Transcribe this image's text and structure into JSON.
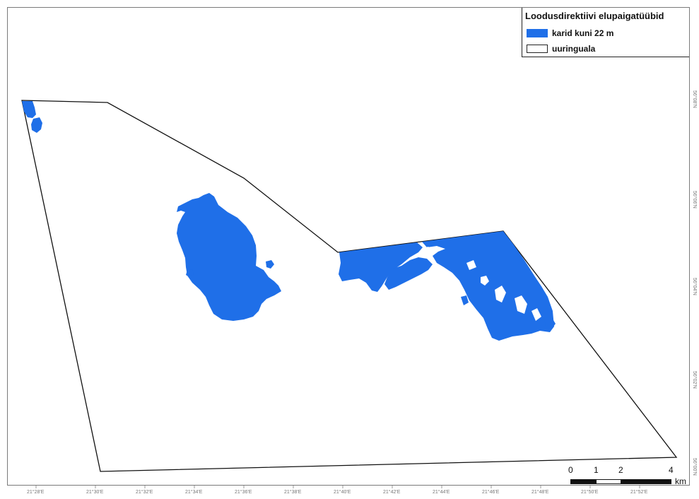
{
  "legend": {
    "title": "Loodusdirektiivi elupaigatüübid",
    "items": [
      {
        "label": "karid kuni 22 m",
        "color": "#1f6fe8"
      },
      {
        "label": "uuringuala",
        "color": "#ffffff"
      }
    ]
  },
  "scalebar": {
    "ticks": [
      "0",
      "1",
      "2",
      "4"
    ],
    "unit": "km"
  },
  "longitude_labels": [
    "21°28'E",
    "21°30'E",
    "21°32'E",
    "21°34'E",
    "21°36'E",
    "21°38'E",
    "21°40'E",
    "21°42'E",
    "21°44'E",
    "21°46'E",
    "21°48'E",
    "21°50'E",
    "21°52'E"
  ],
  "latitude_labels": [
    "56°08'N",
    "56°06'N",
    "56°04'N",
    "56°02'N",
    "56°00'N"
  ],
  "colors": {
    "reef": "#1f6fe8",
    "outline": "#111111",
    "frame": "#7a7a7a"
  }
}
